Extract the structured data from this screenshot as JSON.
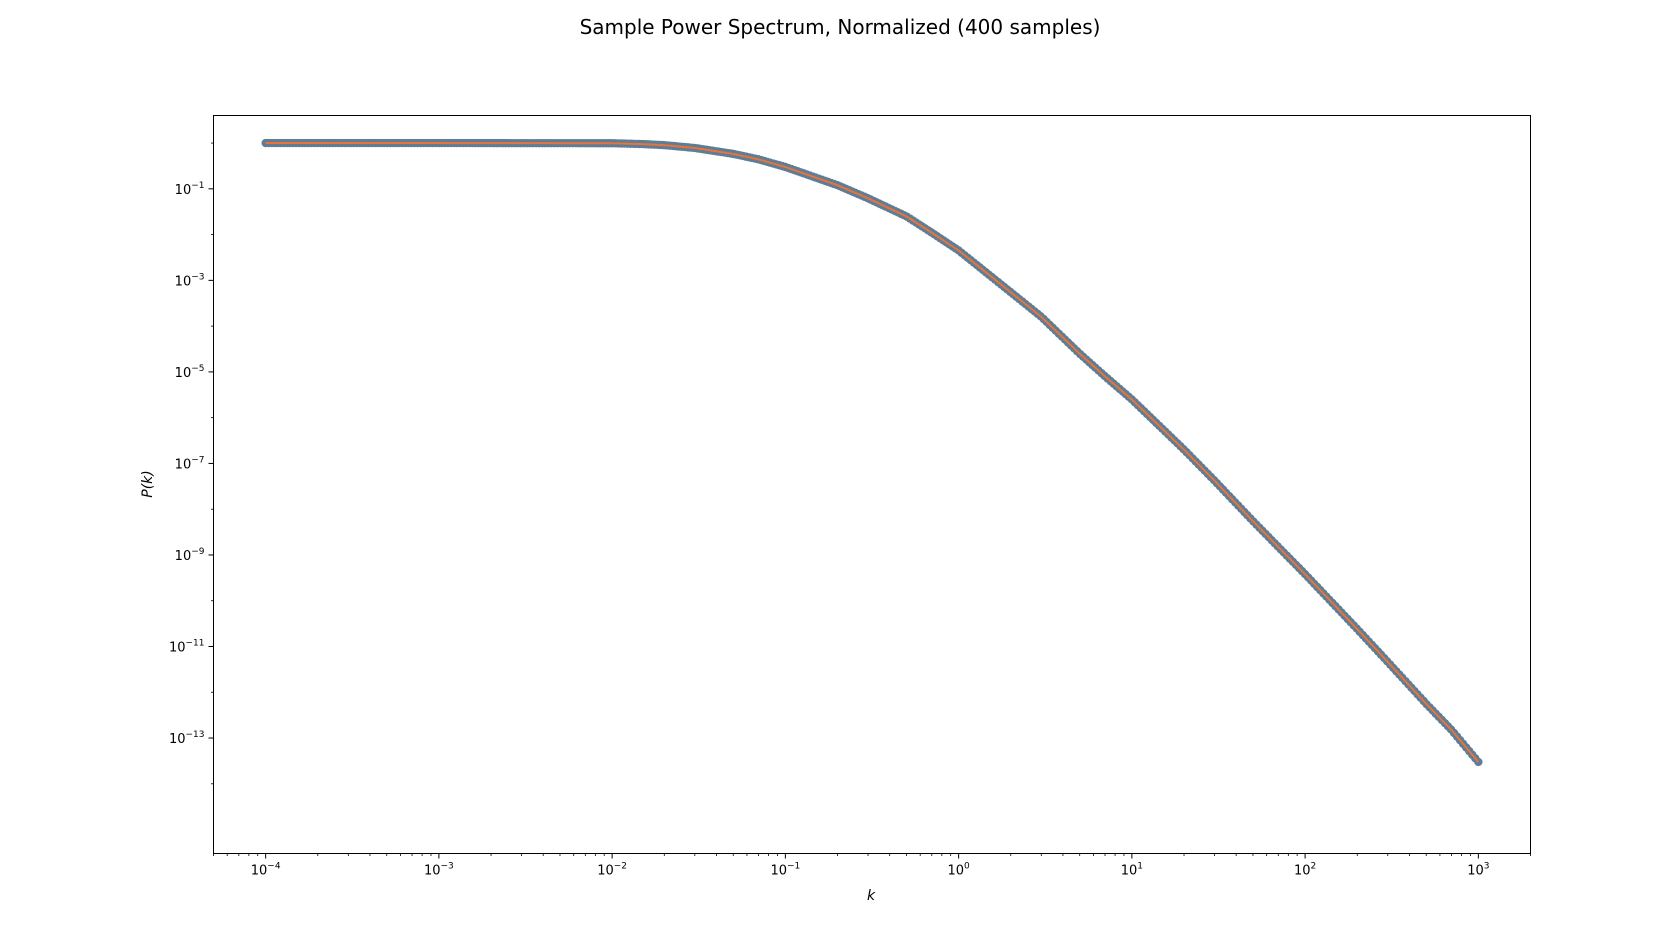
{
  "chart_data": {
    "type": "scatter",
    "title": "Sample Power Spectrum, Normalized (400 samples)",
    "xlabel": "k",
    "ylabel": "P(k)",
    "xscale": "log",
    "yscale": "log",
    "xlim": [
      5e-05,
      2000
    ],
    "ylim": [
      3e-16,
      4
    ],
    "grid": false,
    "x_ticks": [
      {
        "value": 0.0001,
        "base": "10",
        "exp": "−4"
      },
      {
        "value": 0.001,
        "base": "10",
        "exp": "−3"
      },
      {
        "value": 0.01,
        "base": "10",
        "exp": "−2"
      },
      {
        "value": 0.1,
        "base": "10",
        "exp": "−1"
      },
      {
        "value": 1,
        "base": "10",
        "exp": "0"
      },
      {
        "value": 10,
        "base": "10",
        "exp": "1"
      },
      {
        "value": 100,
        "base": "10",
        "exp": "2"
      },
      {
        "value": 1000,
        "base": "10",
        "exp": "3"
      }
    ],
    "y_ticks": [
      {
        "value": 0.1,
        "base": "10",
        "exp": "−1"
      },
      {
        "value": 0.001,
        "base": "10",
        "exp": "−3"
      },
      {
        "value": 1e-05,
        "base": "10",
        "exp": "−5"
      },
      {
        "value": 1e-07,
        "base": "10",
        "exp": "−7"
      },
      {
        "value": 1e-09,
        "base": "10",
        "exp": "−9"
      },
      {
        "value": 1e-11,
        "base": "10",
        "exp": "−11"
      },
      {
        "value": 1e-13,
        "base": "10",
        "exp": "−13"
      }
    ],
    "series": [
      {
        "kind": "markers",
        "color": "#5f7d95",
        "points": [
          [
            0.0001,
            1.0
          ],
          [
            0.001,
            1.0
          ],
          [
            0.01,
            0.99
          ],
          [
            0.015,
            0.95
          ],
          [
            0.02,
            0.9
          ],
          [
            0.03,
            0.78
          ],
          [
            0.05,
            0.58
          ],
          [
            0.07,
            0.44
          ],
          [
            0.1,
            0.3
          ],
          [
            0.2,
            0.12
          ],
          [
            0.3,
            0.062
          ],
          [
            0.5,
            0.025
          ],
          [
            0.7,
            0.011
          ],
          [
            1.0,
            0.0045
          ],
          [
            2.0,
            0.00055
          ],
          [
            3.0,
            0.00016
          ],
          [
            5.0,
            2.5e-05
          ],
          [
            7.0,
            8e-06
          ],
          [
            10.0,
            2.5e-06
          ],
          [
            20.0,
            2e-07
          ],
          [
            30.0,
            4.2e-08
          ],
          [
            50.0,
            5.5e-09
          ],
          [
            70.0,
            1.5e-09
          ],
          [
            100.0,
            3.8e-10
          ],
          [
            200.0,
            2.4e-11
          ],
          [
            300.0,
            4.6e-12
          ],
          [
            500.0,
            5.6e-13
          ],
          [
            700.0,
            1.5e-13
          ],
          [
            1000.0,
            3e-14
          ]
        ]
      },
      {
        "kind": "line",
        "color": "#e8743b"
      }
    ]
  }
}
